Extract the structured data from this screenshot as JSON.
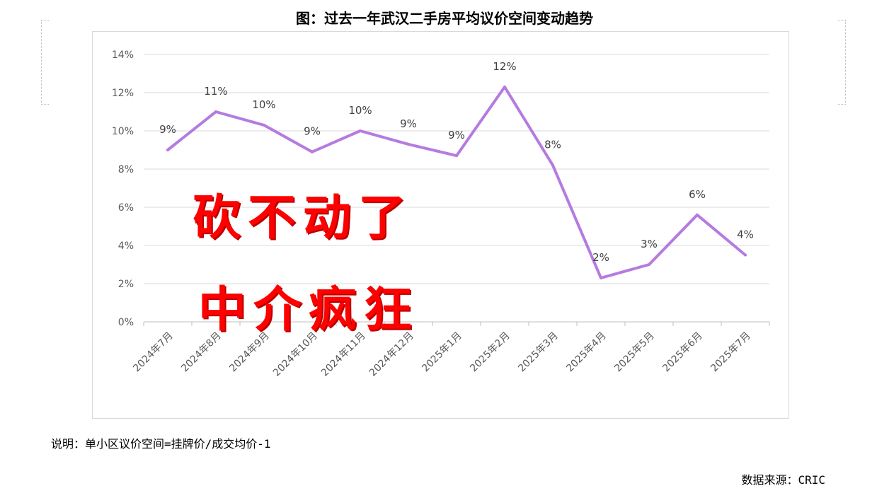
{
  "title": "图：过去一年武汉二手房平均议价空间变动趋势",
  "note": "说明：单小区议价空间=挂牌价/成交均价-1",
  "source": "数据来源：CRIC",
  "overlay": {
    "line1": "砍不动了",
    "line2": "中介疯狂"
  },
  "colors": {
    "line": "#b57be0",
    "grid": "#d9d9d9",
    "overlay_text": "#ff0000",
    "axis_text": "#595959"
  },
  "chart_data": {
    "type": "line",
    "title": "图：过去一年武汉二手房平均议价空间变动趋势",
    "xlabel": "",
    "ylabel": "",
    "categories": [
      "2024年7月",
      "2024年8月",
      "2024年9月",
      "2024年10月",
      "2024年11月",
      "2024年12月",
      "2025年1月",
      "2025年2月",
      "2025年3月",
      "2025年4月",
      "2025年5月",
      "2025年6月",
      "2025年7月"
    ],
    "values": [
      9.0,
      11.0,
      10.3,
      8.9,
      10.0,
      9.3,
      8.7,
      12.3,
      8.2,
      2.3,
      3.0,
      5.6,
      3.5
    ],
    "data_labels": [
      "9%",
      "11%",
      "10%",
      "9%",
      "10%",
      "9%",
      "9%",
      "12%",
      "8%",
      "2%",
      "3%",
      "6%",
      "4%"
    ],
    "ylim": [
      0,
      14
    ],
    "yticks": [
      0,
      2,
      4,
      6,
      8,
      10,
      12,
      14
    ],
    "ytick_labels": [
      "0%",
      "2%",
      "4%",
      "6%",
      "8%",
      "10%",
      "12%",
      "14%"
    ],
    "grid": true,
    "legend": "none"
  }
}
